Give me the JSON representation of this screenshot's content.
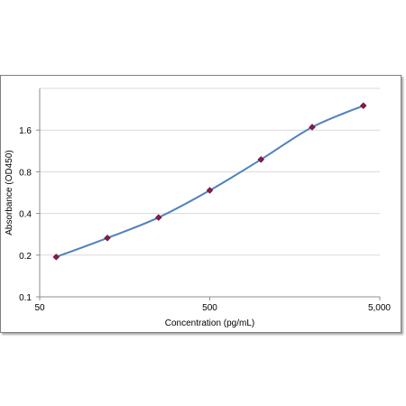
{
  "chart_data": {
    "type": "line",
    "title": "",
    "xlabel": "Concentration (pg/mL)",
    "ylabel": "Absorbance (OD450)",
    "x_scale": "log",
    "y_scale": "log",
    "xlim": [
      50,
      5000
    ],
    "ylim": [
      0.1,
      3.2
    ],
    "x_ticks": [
      50,
      500,
      5000
    ],
    "x_tick_labels": [
      "50",
      "500",
      "5,000"
    ],
    "y_ticks": [
      0.1,
      0.2,
      0.4,
      0.8,
      1.6
    ],
    "y_tick_labels": [
      "0.1",
      "0.2",
      "0.4",
      "0.8",
      "1.6"
    ],
    "grid": "horizontal",
    "legend": "none",
    "series": [
      {
        "x": [
          62.5,
          125,
          250,
          500,
          1000,
          2000,
          4000
        ],
        "y": [
          0.194,
          0.266,
          0.374,
          0.587,
          0.981,
          1.68,
          2.4
        ]
      }
    ],
    "colors": {
      "line": "#4f81bd",
      "marker": "#8b1a4a",
      "grid": "#d9d9d9",
      "axis": "#8c8c8c"
    }
  }
}
